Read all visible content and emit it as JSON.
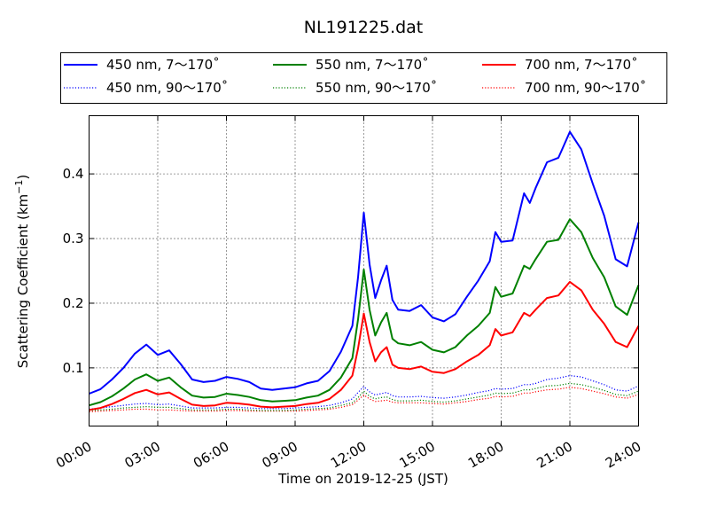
{
  "chart_data": {
    "type": "line",
    "title": "NL191225.dat",
    "xlabel": "Time on 2019-12-25 (JST)",
    "ylabel": "Scattering Coefficient (km",
    "ylabel_exponent": "−1",
    "ylabel_close": ")",
    "x_ticks": [
      "00:00",
      "03:00",
      "06:00",
      "09:00",
      "12:00",
      "15:00",
      "18:00",
      "21:00",
      "24:00"
    ],
    "y_ticks": [
      "0.1",
      "0.2",
      "0.3",
      "0.4"
    ],
    "xlim": [
      0,
      24
    ],
    "ylim": [
      0.01,
      0.49
    ],
    "grid": true,
    "legend_position": "top (outside plot)",
    "x": [
      0.0,
      0.5,
      1.0,
      1.5,
      2.0,
      2.5,
      3.0,
      3.5,
      4.0,
      4.5,
      5.0,
      5.5,
      6.0,
      6.5,
      7.0,
      7.5,
      8.0,
      8.5,
      9.0,
      9.5,
      10.0,
      10.5,
      11.0,
      11.5,
      11.75,
      12.0,
      12.25,
      12.5,
      12.75,
      13.0,
      13.25,
      13.5,
      14.0,
      14.5,
      15.0,
      15.5,
      16.0,
      16.5,
      17.0,
      17.5,
      17.75,
      18.0,
      18.5,
      19.0,
      19.25,
      19.5,
      20.0,
      20.5,
      21.0,
      21.5,
      22.0,
      22.5,
      23.0,
      23.5,
      24.0
    ],
    "series": [
      {
        "name": "450 nm, 7～170˚",
        "color": "#0000ff",
        "style": "solid",
        "values": [
          0.06,
          0.067,
          0.082,
          0.1,
          0.122,
          0.136,
          0.12,
          0.127,
          0.106,
          0.082,
          0.078,
          0.08,
          0.086,
          0.083,
          0.078,
          0.068,
          0.066,
          0.068,
          0.07,
          0.076,
          0.08,
          0.095,
          0.125,
          0.165,
          0.24,
          0.34,
          0.26,
          0.208,
          0.235,
          0.258,
          0.205,
          0.19,
          0.188,
          0.197,
          0.178,
          0.172,
          0.183,
          0.21,
          0.235,
          0.265,
          0.31,
          0.295,
          0.297,
          0.37,
          0.355,
          0.378,
          0.418,
          0.425,
          0.465,
          0.438,
          0.385,
          0.335,
          0.268,
          0.257,
          0.325
        ]
      },
      {
        "name": "550 nm, 7～170˚",
        "color": "#008000",
        "style": "solid",
        "values": [
          0.042,
          0.047,
          0.056,
          0.068,
          0.082,
          0.09,
          0.08,
          0.085,
          0.07,
          0.057,
          0.054,
          0.055,
          0.06,
          0.058,
          0.055,
          0.05,
          0.048,
          0.049,
          0.05,
          0.054,
          0.057,
          0.066,
          0.085,
          0.115,
          0.175,
          0.252,
          0.19,
          0.15,
          0.17,
          0.185,
          0.145,
          0.138,
          0.135,
          0.14,
          0.128,
          0.124,
          0.132,
          0.15,
          0.165,
          0.185,
          0.225,
          0.21,
          0.215,
          0.258,
          0.253,
          0.268,
          0.295,
          0.298,
          0.33,
          0.31,
          0.27,
          0.24,
          0.195,
          0.182,
          0.228
        ]
      },
      {
        "name": "700 nm, 7～170˚",
        "color": "#ff0000",
        "style": "solid",
        "values": [
          0.035,
          0.038,
          0.044,
          0.052,
          0.061,
          0.066,
          0.059,
          0.062,
          0.052,
          0.043,
          0.041,
          0.042,
          0.046,
          0.045,
          0.043,
          0.04,
          0.039,
          0.04,
          0.041,
          0.044,
          0.046,
          0.052,
          0.066,
          0.088,
          0.13,
          0.184,
          0.14,
          0.11,
          0.124,
          0.132,
          0.105,
          0.1,
          0.098,
          0.102,
          0.094,
          0.092,
          0.098,
          0.11,
          0.12,
          0.135,
          0.16,
          0.15,
          0.155,
          0.185,
          0.18,
          0.19,
          0.208,
          0.212,
          0.233,
          0.22,
          0.19,
          0.168,
          0.14,
          0.132,
          0.165
        ]
      },
      {
        "name": "450 nm, 90～170˚",
        "color": "#0000ff",
        "style": "dotted",
        "values": [
          0.036,
          0.038,
          0.04,
          0.042,
          0.044,
          0.045,
          0.043,
          0.044,
          0.041,
          0.038,
          0.038,
          0.038,
          0.039,
          0.039,
          0.038,
          0.037,
          0.037,
          0.037,
          0.038,
          0.039,
          0.04,
          0.042,
          0.046,
          0.052,
          0.062,
          0.071,
          0.063,
          0.058,
          0.06,
          0.062,
          0.057,
          0.055,
          0.055,
          0.056,
          0.054,
          0.053,
          0.055,
          0.058,
          0.062,
          0.065,
          0.068,
          0.067,
          0.068,
          0.074,
          0.074,
          0.076,
          0.082,
          0.084,
          0.088,
          0.086,
          0.08,
          0.074,
          0.066,
          0.064,
          0.072
        ]
      },
      {
        "name": "550 nm, 90～170˚",
        "color": "#008000",
        "style": "dotted",
        "values": [
          0.034,
          0.035,
          0.036,
          0.038,
          0.039,
          0.04,
          0.039,
          0.039,
          0.037,
          0.035,
          0.035,
          0.035,
          0.036,
          0.036,
          0.035,
          0.034,
          0.034,
          0.034,
          0.035,
          0.036,
          0.037,
          0.038,
          0.042,
          0.046,
          0.054,
          0.064,
          0.056,
          0.052,
          0.054,
          0.055,
          0.051,
          0.049,
          0.049,
          0.05,
          0.048,
          0.047,
          0.049,
          0.052,
          0.055,
          0.058,
          0.061,
          0.06,
          0.061,
          0.066,
          0.066,
          0.068,
          0.072,
          0.073,
          0.076,
          0.074,
          0.07,
          0.065,
          0.059,
          0.057,
          0.064
        ]
      },
      {
        "name": "700 nm, 90～170˚",
        "color": "#ff0000",
        "style": "dotted",
        "values": [
          0.032,
          0.033,
          0.034,
          0.035,
          0.036,
          0.036,
          0.035,
          0.035,
          0.034,
          0.033,
          0.033,
          0.033,
          0.034,
          0.034,
          0.033,
          0.033,
          0.033,
          0.033,
          0.033,
          0.034,
          0.035,
          0.036,
          0.039,
          0.043,
          0.05,
          0.058,
          0.052,
          0.048,
          0.049,
          0.05,
          0.047,
          0.046,
          0.046,
          0.046,
          0.045,
          0.044,
          0.046,
          0.048,
          0.051,
          0.053,
          0.056,
          0.055,
          0.056,
          0.061,
          0.061,
          0.063,
          0.066,
          0.067,
          0.07,
          0.068,
          0.064,
          0.06,
          0.055,
          0.053,
          0.059
        ]
      }
    ]
  }
}
